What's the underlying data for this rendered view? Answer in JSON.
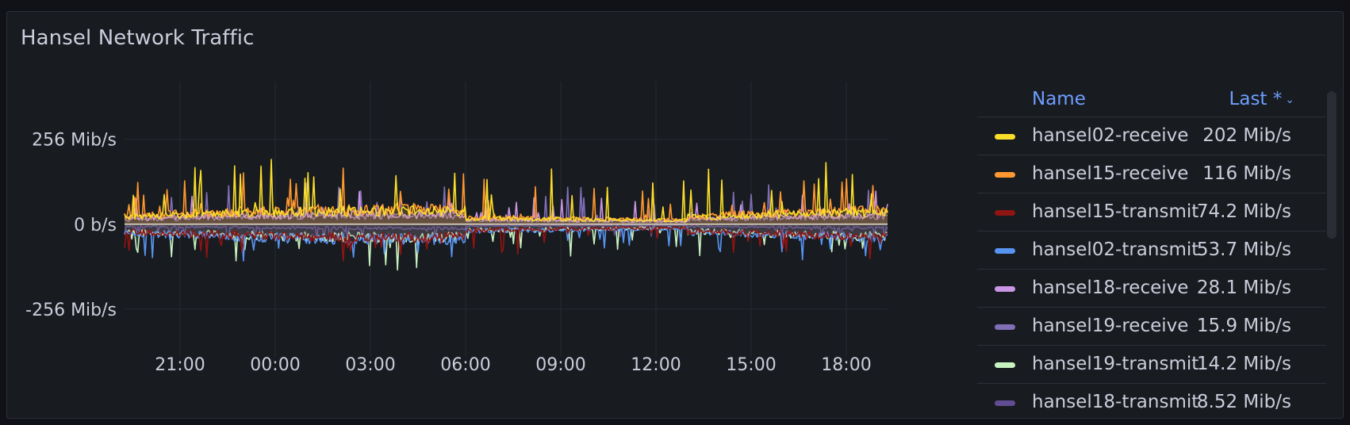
{
  "panel": {
    "title": "Hansel Network Traffic"
  },
  "legend": {
    "name_header": "Name",
    "last_header": "Last *",
    "sort_icon": "chevron-down-icon"
  },
  "chart_data": {
    "type": "area",
    "title": "Hansel Network Traffic",
    "xlabel": "",
    "ylabel": "",
    "x_ticks": [
      "21:00",
      "00:00",
      "03:00",
      "06:00",
      "09:00",
      "12:00",
      "15:00",
      "18:00"
    ],
    "x_range_hours": [
      19.25,
      43.3
    ],
    "y_ticks": [
      "256 Mib/s",
      "0 b/s",
      "-256 Mib/s"
    ],
    "y_tick_values": [
      256,
      0,
      -256
    ],
    "ylim": [
      -400,
      430
    ],
    "grid": true,
    "legend_placement": "right",
    "series": [
      {
        "name": "hansel02-receive",
        "last": "202 Mib/s",
        "color": "#fade2a",
        "direction": "receive",
        "level": 40,
        "spike": 160
      },
      {
        "name": "hansel15-receive",
        "last": "116 Mib/s",
        "color": "#ff9830",
        "direction": "receive",
        "level": 45,
        "spike": 130
      },
      {
        "name": "hansel15-transmit",
        "last": "74.2 Mib/s",
        "color": "#8f1512",
        "direction": "transmit",
        "level": 40,
        "spike": 70
      },
      {
        "name": "hansel02-transmit",
        "last": "53.7 Mib/s",
        "color": "#5794f2",
        "direction": "transmit",
        "level": 45,
        "spike": 70
      },
      {
        "name": "hansel18-receive",
        "last": "28.1 Mib/s",
        "color": "#ca95e5",
        "direction": "receive",
        "level": 30,
        "spike": 70
      },
      {
        "name": "hansel19-receive",
        "last": "15.9 Mib/s",
        "color": "#806eb7",
        "direction": "receive",
        "level": 25,
        "spike": 110
      },
      {
        "name": "hansel19-transmit",
        "last": "14.2 Mib/s",
        "color": "#c8f2c2",
        "direction": "transmit",
        "level": 40,
        "spike": 90
      },
      {
        "name": "hansel18-transmit",
        "last": "8.52 Mib/s",
        "color": "#614d93",
        "direction": "transmit",
        "level": 12,
        "spike": 40
      }
    ]
  }
}
